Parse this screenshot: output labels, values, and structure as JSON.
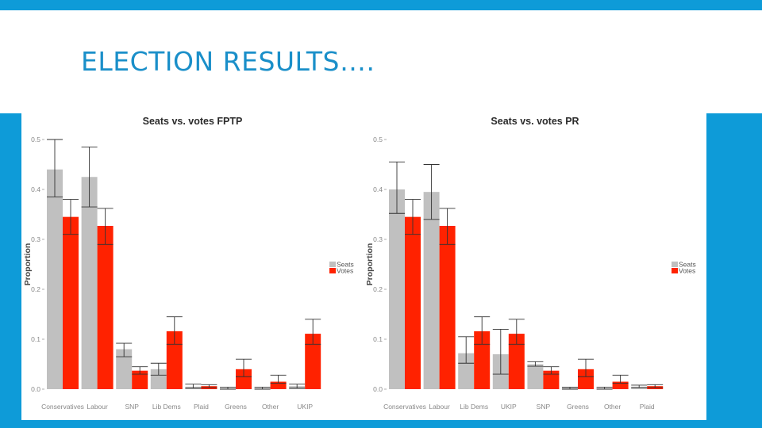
{
  "slide": {
    "title": "ELECTION RESULTS…."
  },
  "colors": {
    "accent": "#0e9bd8",
    "title_text": "#1a8fc9",
    "seats": "#c0c0c0",
    "votes": "#ff2200",
    "error_bar": "#333333"
  },
  "chart_data": [
    {
      "id": "fptp",
      "type": "bar",
      "title": "Seats vs. votes FPTP",
      "xlabel": "",
      "ylabel": "Proportion",
      "ylim": [
        0,
        0.5
      ],
      "yticks": [
        "0.0",
        "0.1",
        "0.2",
        "0.3",
        "0.4",
        "0.5"
      ],
      "grid": false,
      "legend": {
        "position": "right",
        "entries": [
          "Seats",
          "Votes"
        ]
      },
      "categories": [
        "Conservatives",
        "Labour",
        "SNP",
        "Lib Dems",
        "Plaid",
        "Greens",
        "Other",
        "UKIP"
      ],
      "series": [
        {
          "name": "Seats",
          "values": [
            0.44,
            0.425,
            0.08,
            0.04,
            0.005,
            0.002,
            0.002,
            0.006
          ],
          "err_low": [
            0.385,
            0.365,
            0.065,
            0.028,
            0.002,
            0.0,
            0.0,
            0.002
          ],
          "err_high": [
            0.5,
            0.485,
            0.092,
            0.052,
            0.01,
            0.004,
            0.004,
            0.01
          ]
        },
        {
          "name": "Votes",
          "values": [
            0.345,
            0.327,
            0.037,
            0.116,
            0.006,
            0.04,
            0.015,
            0.111
          ],
          "err_low": [
            0.31,
            0.29,
            0.03,
            0.09,
            0.003,
            0.025,
            0.012,
            0.09
          ],
          "err_high": [
            0.38,
            0.362,
            0.045,
            0.145,
            0.009,
            0.06,
            0.028,
            0.14
          ]
        }
      ]
    },
    {
      "id": "pr",
      "type": "bar",
      "title": "Seats vs. votes PR",
      "xlabel": "",
      "ylabel": "Proportion",
      "ylim": [
        0,
        0.5
      ],
      "yticks": [
        "0.0",
        "0.1",
        "0.2",
        "0.3",
        "0.4",
        "0.5"
      ],
      "grid": false,
      "legend": {
        "position": "right",
        "entries": [
          "Seats",
          "Votes"
        ]
      },
      "categories": [
        "Conservatives",
        "Labour",
        "Lib Dems",
        "UKIP",
        "SNP",
        "Greens",
        "Other",
        "Plaid"
      ],
      "series": [
        {
          "name": "Seats",
          "values": [
            0.4,
            0.395,
            0.072,
            0.07,
            0.05,
            0.003,
            0.002,
            0.005
          ],
          "err_low": [
            0.352,
            0.34,
            0.052,
            0.03,
            0.046,
            0.0,
            0.0,
            0.003
          ],
          "err_high": [
            0.455,
            0.45,
            0.105,
            0.12,
            0.055,
            0.004,
            0.004,
            0.008
          ]
        },
        {
          "name": "Votes",
          "values": [
            0.345,
            0.327,
            0.116,
            0.111,
            0.037,
            0.04,
            0.015,
            0.006
          ],
          "err_low": [
            0.31,
            0.29,
            0.09,
            0.09,
            0.03,
            0.025,
            0.012,
            0.003
          ],
          "err_high": [
            0.38,
            0.362,
            0.145,
            0.14,
            0.045,
            0.06,
            0.028,
            0.009
          ]
        }
      ]
    }
  ]
}
